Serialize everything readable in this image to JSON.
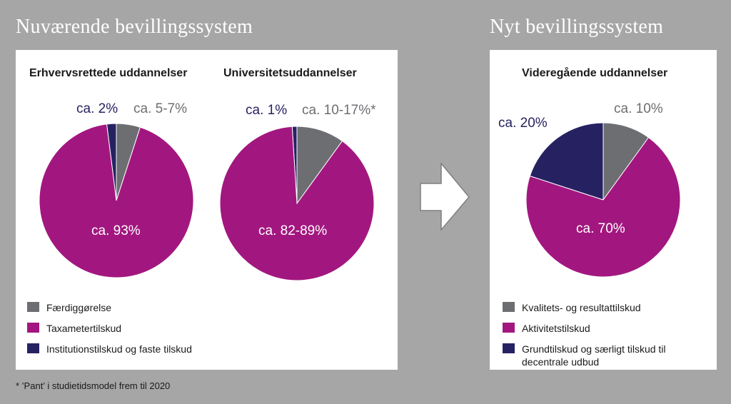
{
  "headings": {
    "current": "Nuværende bevillingssystem",
    "new": "Nyt bevillingssystem"
  },
  "colors": {
    "grey": "#6d6e71",
    "magenta": "#a2177f",
    "navy": "#262262"
  },
  "chart_data": [
    {
      "type": "pie",
      "title": "Erhvervsrettede uddannelser",
      "slices": [
        {
          "category": "Institutionstilskud og faste tilskud",
          "value": 2,
          "label": "ca. 2%"
        },
        {
          "category": "Færdiggørelse",
          "value": 5,
          "label": "ca. 5-7%"
        },
        {
          "category": "Taxametertilskud",
          "value": 93,
          "label": "ca. 93%"
        }
      ]
    },
    {
      "type": "pie",
      "title": "Universitetsuddannelser",
      "slices": [
        {
          "category": "Institutionstilskud og faste tilskud",
          "value": 1,
          "label": "ca. 1%"
        },
        {
          "category": "Færdiggørelse",
          "value": 10,
          "label": "ca. 10-17%*"
        },
        {
          "category": "Taxametertilskud",
          "value": 89,
          "label": "ca. 82-89%"
        }
      ]
    },
    {
      "type": "pie",
      "title": "Videregående uddannelser",
      "slices": [
        {
          "category": "Grundtilskud og særligt tilskud til decentrale udbud",
          "value": 20,
          "label": "ca. 20%"
        },
        {
          "category": "Kvalitets- og resultattilskud",
          "value": 10,
          "label": "ca. 10%"
        },
        {
          "category": "Aktivitetstilskud",
          "value": 70,
          "label": "ca. 70%"
        }
      ]
    }
  ],
  "legend_current": [
    {
      "label": "Færdiggørelse",
      "color": "#6d6e71"
    },
    {
      "label": "Taxametertilskud",
      "color": "#a2177f"
    },
    {
      "label": "Institutionstilskud og faste tilskud",
      "color": "#262262"
    }
  ],
  "legend_new": [
    {
      "label": "Kvalitets- og resultattilskud",
      "color": "#6d6e71"
    },
    {
      "label": "Aktivitetstilskud",
      "color": "#a2177f"
    },
    {
      "label": "Grundtilskud og særligt tilskud til decentrale udbud",
      "color": "#262262"
    }
  ],
  "footnote": "* ’Pant’ i studietidsmodel frem til 2020"
}
